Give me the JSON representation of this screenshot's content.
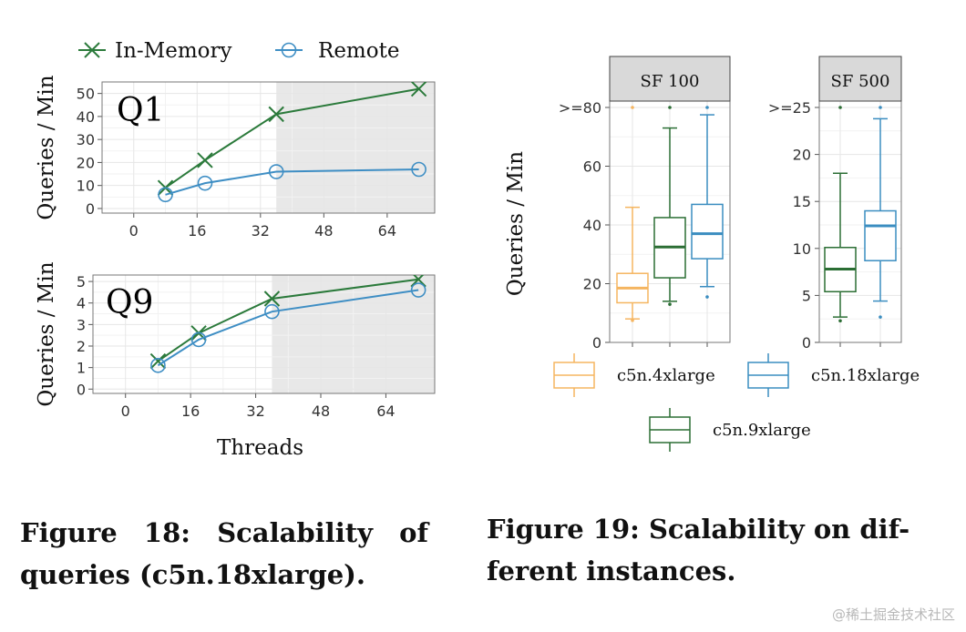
{
  "figure18": {
    "caption": "Figure 18: Scalability of queries (c5n.18xlarge).",
    "colors": {
      "in_memory": "#2b7a3b",
      "remote": "#3e8ec4",
      "shade": "#e8e8e8"
    }
  },
  "figure19": {
    "caption": "Figure 19: Scalability on different instances.",
    "caption_lines": [
      "Figure 19: Scalability on dif-",
      "ferent instances."
    ],
    "colors": {
      "c5n.4xlarge": "#f5b560",
      "c5n.9xlarge": "#2b6e34",
      "c5n.18xlarge": "#3a8dc0"
    }
  },
  "watermark": "@稀土掘金技术社区",
  "chart_data": [
    {
      "type": "line",
      "panel_label": "Q1",
      "xlabel": "",
      "ylabel": "Queries / Min",
      "xlim": [
        -8,
        76
      ],
      "ylim": [
        -2,
        55
      ],
      "xticks": [
        0,
        16,
        32,
        48,
        64
      ],
      "yticks": [
        0,
        10,
        20,
        30,
        40,
        50
      ],
      "shaded_from_x": 36,
      "legend": {
        "position": "top",
        "entries": [
          "In-Memory",
          "Remote"
        ]
      },
      "series": [
        {
          "name": "In-Memory",
          "marker": "x",
          "x": [
            8,
            18,
            36,
            72
          ],
          "values": [
            9,
            21,
            41,
            52
          ]
        },
        {
          "name": "Remote",
          "marker": "o",
          "x": [
            8,
            18,
            36,
            72
          ],
          "values": [
            6,
            11,
            16,
            17
          ]
        }
      ]
    },
    {
      "type": "line",
      "panel_label": "Q9",
      "xlabel": "Threads",
      "ylabel": "Queries / Min",
      "xlim": [
        -8,
        76
      ],
      "ylim": [
        -0.2,
        5.3
      ],
      "xticks": [
        0,
        16,
        32,
        48,
        64
      ],
      "yticks": [
        0,
        1,
        2,
        3,
        4,
        5
      ],
      "shaded_from_x": 36,
      "series": [
        {
          "name": "In-Memory",
          "marker": "x",
          "x": [
            8,
            18,
            36,
            72
          ],
          "values": [
            1.3,
            2.6,
            4.2,
            5.1
          ]
        },
        {
          "name": "Remote",
          "marker": "o",
          "x": [
            8,
            18,
            36,
            72
          ],
          "values": [
            1.1,
            2.3,
            3.6,
            4.6
          ]
        }
      ]
    },
    {
      "type": "box",
      "facet": "SF 100",
      "ylabel": "Queries / Min",
      "ylim": [
        0,
        80
      ],
      "yticks": [
        0,
        20,
        40,
        60,
        80
      ],
      "ytick_labels": [
        "0",
        "20",
        "40",
        "60",
        ">=80"
      ],
      "series": [
        {
          "name": "c5n.4xlarge",
          "min": 8,
          "q1": 13.5,
          "median": 18.5,
          "q3": 23.5,
          "max": 46,
          "outliers": [
            7.5,
            80
          ]
        },
        {
          "name": "c5n.9xlarge",
          "min": 14,
          "q1": 22,
          "median": 32.5,
          "q3": 42.5,
          "max": 73,
          "outliers": [
            13,
            80
          ]
        },
        {
          "name": "c5n.18xlarge",
          "min": 19,
          "q1": 28.5,
          "median": 37,
          "q3": 47,
          "max": 77.5,
          "outliers": [
            15.5,
            80
          ]
        }
      ]
    },
    {
      "type": "box",
      "facet": "SF 500",
      "ylabel": "",
      "ylim": [
        0,
        25
      ],
      "yticks": [
        0,
        5,
        10,
        15,
        20,
        25
      ],
      "ytick_labels": [
        "0",
        "5",
        "10",
        "15",
        "20",
        ">=25"
      ],
      "series": [
        {
          "name": "c5n.9xlarge",
          "min": 2.7,
          "q1": 5.4,
          "median": 7.8,
          "q3": 10.1,
          "max": 18,
          "outliers": [
            2.3,
            25
          ]
        },
        {
          "name": "c5n.18xlarge",
          "min": 4.4,
          "q1": 8.7,
          "median": 12.4,
          "q3": 14,
          "max": 23.8,
          "outliers": [
            2.7,
            25
          ]
        }
      ]
    },
    {
      "type": "legend",
      "entries": [
        "c5n.4xlarge",
        "c5n.18xlarge",
        "c5n.9xlarge"
      ]
    }
  ]
}
